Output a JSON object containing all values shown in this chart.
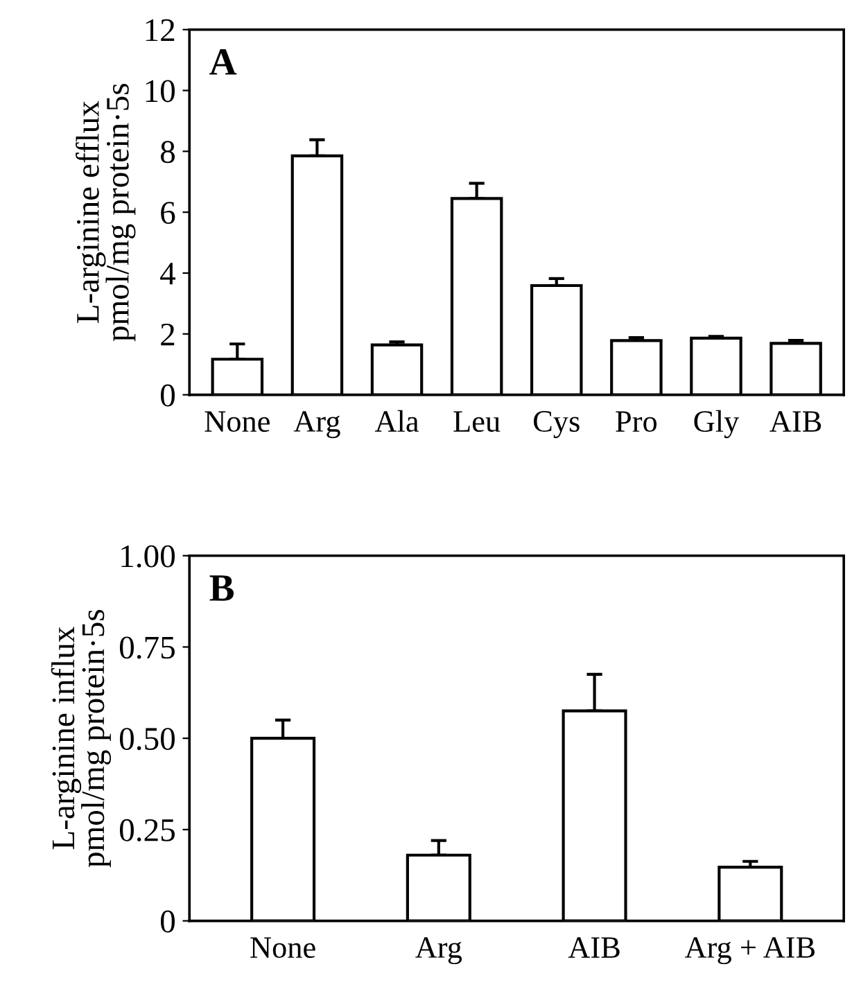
{
  "chart_data": [
    {
      "type": "bar",
      "title": "A",
      "ylabel": "L-arginine efflux\npmol/mg protein·5s",
      "categories": [
        "None",
        "Arg",
        "Ala",
        "Leu",
        "Cys",
        "Pro",
        "Gly",
        "AIB"
      ],
      "values": [
        1.17,
        7.85,
        1.64,
        6.45,
        3.59,
        1.78,
        1.86,
        1.69
      ],
      "errors": [
        0.5,
        0.53,
        0.1,
        0.5,
        0.23,
        0.1,
        0.06,
        0.1
      ],
      "color": "#ffffff",
      "ylim": [
        0,
        12
      ],
      "yticks": [
        0,
        2,
        4,
        6,
        8,
        10,
        12
      ],
      "grid": false,
      "legend": false
    },
    {
      "type": "bar",
      "title": "B",
      "ylabel": "L-arginine influx\npmol/mg protein·5s",
      "categories": [
        "None",
        "Arg",
        "AIB",
        "Arg + AIB"
      ],
      "values": [
        0.5,
        0.18,
        0.575,
        0.147
      ],
      "errors": [
        0.05,
        0.04,
        0.1,
        0.016
      ],
      "color": "#ffffff",
      "ylim": [
        0,
        1.0
      ],
      "yticks": [
        0,
        {
          "value": 0.25,
          "label": "0.25"
        },
        {
          "value": 0.5,
          "label": "0.50"
        },
        {
          "value": 0.75,
          "label": "0.75"
        },
        {
          "value": 1.0,
          "label": "1.00"
        }
      ],
      "grid": false,
      "legend": false
    }
  ]
}
